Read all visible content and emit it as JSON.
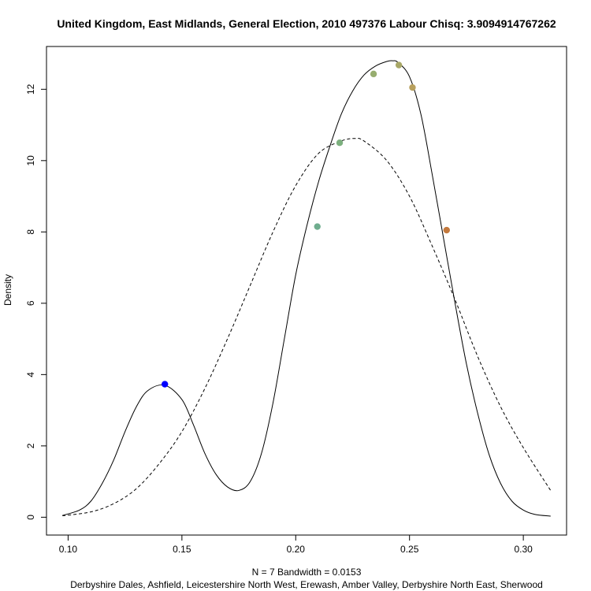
{
  "chart_data": {
    "type": "line",
    "title": "United Kingdom, East Midlands, General Election, 2010 497376 Labour Chisq: 3.9094914767262",
    "xlabel_line1": "N = 7   Bandwidth = 0.0153",
    "xlabel_line2": "Derbyshire Dales, Ashfield, Leicestershire North West, Erewash, Amber Valley, Derbyshire North East, Sherwood",
    "ylabel": "Density",
    "xlim": [
      0.0905,
      0.319
    ],
    "ylim": [
      -0.5,
      13.2
    ],
    "xticks": [
      0.1,
      0.15,
      0.2,
      0.25,
      0.3
    ],
    "xtick_labels": [
      "0.10",
      "0.15",
      "0.20",
      "0.25",
      "0.30"
    ],
    "yticks": [
      0,
      2,
      4,
      6,
      8,
      10,
      12
    ],
    "ytick_labels": [
      "0",
      "2",
      "4",
      "6",
      "8",
      "10",
      "12"
    ],
    "grid": false,
    "series": [
      {
        "line_style": "solid",
        "x": [
          0.0975,
          0.105,
          0.11,
          0.115,
          0.12,
          0.125,
          0.13,
          0.135,
          0.1425,
          0.15,
          0.155,
          0.16,
          0.165,
          0.17,
          0.175,
          0.18,
          0.185,
          0.19,
          0.195,
          0.2,
          0.205,
          0.21,
          0.215,
          0.22,
          0.225,
          0.23,
          0.235,
          0.24,
          0.2425,
          0.245,
          0.25,
          0.255,
          0.26,
          0.265,
          0.27,
          0.275,
          0.28,
          0.285,
          0.29,
          0.295,
          0.3,
          0.305,
          0.312
        ],
        "y": [
          0.05,
          0.2,
          0.45,
          0.95,
          1.6,
          2.4,
          3.1,
          3.55,
          3.7,
          3.3,
          2.6,
          1.8,
          1.2,
          0.85,
          0.75,
          1.0,
          1.8,
          3.2,
          5.0,
          6.8,
          8.2,
          9.4,
          10.4,
          11.3,
          11.95,
          12.4,
          12.65,
          12.78,
          12.8,
          12.75,
          12.35,
          11.3,
          9.6,
          7.8,
          6.0,
          4.3,
          2.9,
          1.75,
          0.95,
          0.45,
          0.2,
          0.08,
          0.03
        ]
      },
      {
        "line_style": "dashed",
        "x": [
          0.0975,
          0.11,
          0.12,
          0.13,
          0.14,
          0.15,
          0.16,
          0.17,
          0.18,
          0.19,
          0.2,
          0.21,
          0.22,
          0.226,
          0.23,
          0.24,
          0.25,
          0.26,
          0.27,
          0.28,
          0.29,
          0.3,
          0.312
        ],
        "y": [
          0.04,
          0.15,
          0.38,
          0.8,
          1.5,
          2.4,
          3.6,
          5.0,
          6.5,
          8.0,
          9.3,
          10.2,
          10.55,
          10.62,
          10.55,
          10.0,
          9.0,
          7.6,
          6.1,
          4.5,
          3.1,
          1.95,
          0.75
        ]
      }
    ],
    "points": [
      {
        "x": 0.1425,
        "y": 3.73,
        "color": "#0000ff"
      },
      {
        "x": 0.2095,
        "y": 8.15,
        "color": "#6fad8e"
      },
      {
        "x": 0.2193,
        "y": 10.5,
        "color": "#7cb07e"
      },
      {
        "x": 0.2342,
        "y": 12.43,
        "color": "#97ad6f"
      },
      {
        "x": 0.2453,
        "y": 12.68,
        "color": "#a8a766"
      },
      {
        "x": 0.2513,
        "y": 12.05,
        "color": "#b8a05e"
      },
      {
        "x": 0.2663,
        "y": 8.05,
        "color": "#c47a3e"
      }
    ]
  }
}
